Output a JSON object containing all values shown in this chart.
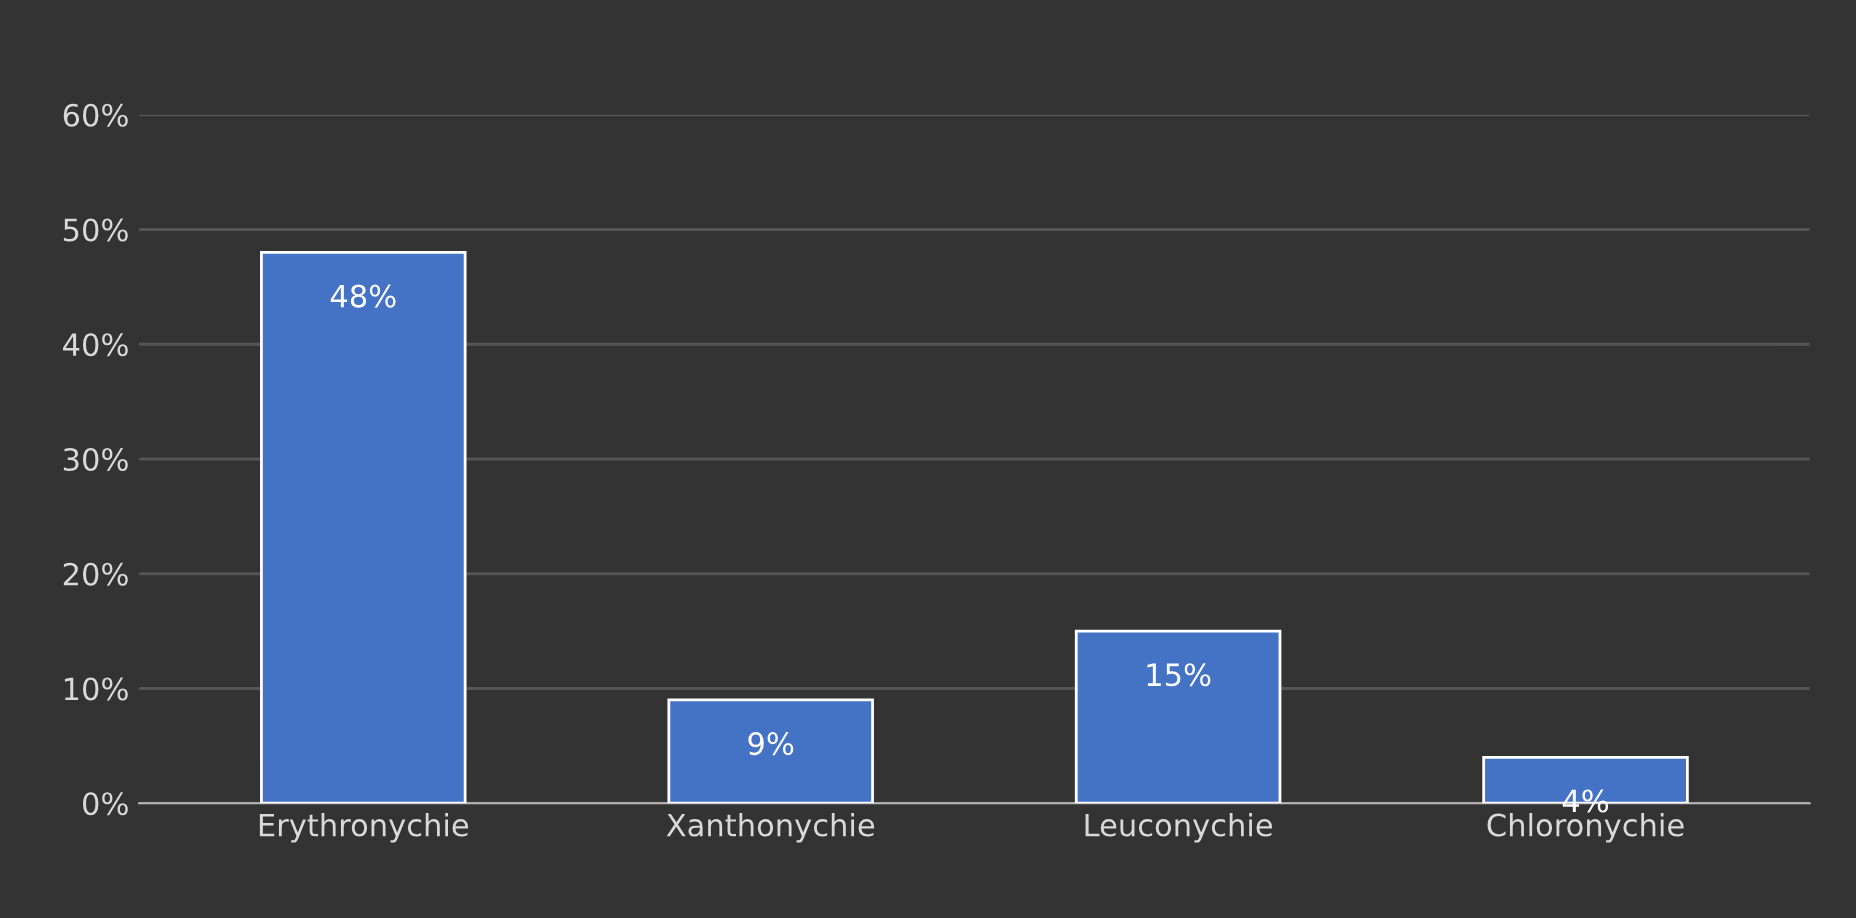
{
  "chart_data": {
    "type": "bar",
    "categories": [
      "Erythronychie",
      "Xanthonychie",
      "Leuconychie",
      "Chloronychie"
    ],
    "values": [
      48,
      9,
      15,
      4
    ],
    "value_labels": [
      "48%",
      "9%",
      "15%",
      "4%"
    ],
    "color": "#4472c4",
    "ylim": [
      0,
      60
    ],
    "yticks": [
      {
        "value": 0,
        "label": "0%"
      },
      {
        "value": 10,
        "label": "10%"
      },
      {
        "value": 20,
        "label": "20%"
      },
      {
        "value": 30,
        "label": "30%"
      },
      {
        "value": 40,
        "label": "40%"
      },
      {
        "value": 50,
        "label": "50%"
      },
      {
        "value": 60,
        "label": "60%"
      }
    ],
    "grid": "y",
    "legend": false
  }
}
